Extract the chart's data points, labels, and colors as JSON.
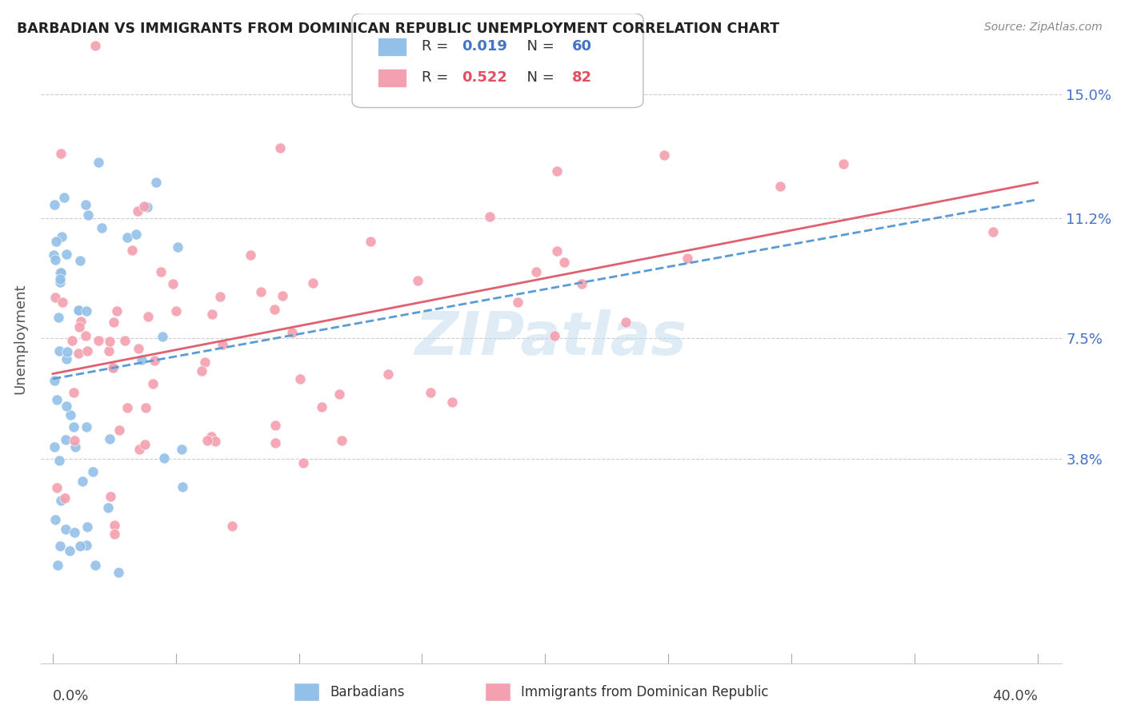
{
  "title": "BARBADIAN VS IMMIGRANTS FROM DOMINICAN REPUBLIC UNEMPLOYMENT CORRELATION CHART",
  "source": "Source: ZipAtlas.com",
  "ylabel": "Unemployment",
  "ytick_labels": [
    "15.0%",
    "11.2%",
    "7.5%",
    "3.8%"
  ],
  "ytick_values": [
    0.15,
    0.112,
    0.075,
    0.038
  ],
  "xlim": [
    -0.005,
    0.41
  ],
  "ylim": [
    -0.025,
    0.175
  ],
  "legend_r1": "0.019",
  "legend_n1": "60",
  "legend_r2": "0.522",
  "legend_n2": "82",
  "color_blue": "#92c0e8",
  "color_pink": "#f4a0b0",
  "trendline_blue": "#5b9bd5",
  "trendline_pink": "#e06070",
  "watermark": "ZIPatlas",
  "seed": 42
}
